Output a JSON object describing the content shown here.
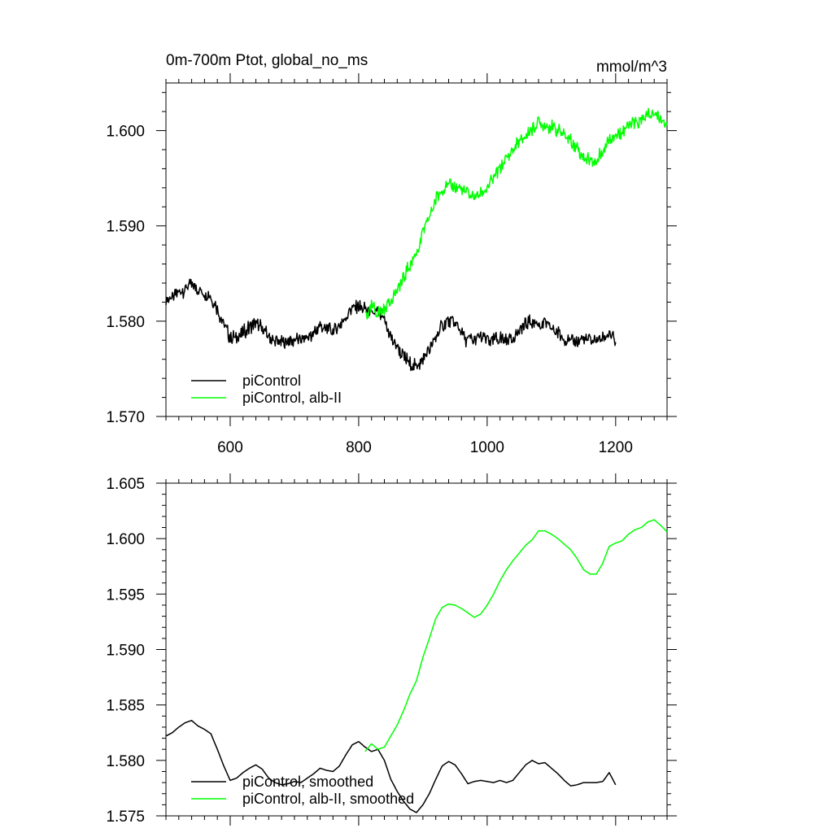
{
  "chart_data": [
    {
      "type": "line",
      "title": "0m-700m Ptot, global_no_ms",
      "units": "mmol/m^3",
      "xlim": [
        500,
        1280
      ],
      "ylim": [
        1.57,
        1.605
      ],
      "x_ticks": [
        600,
        800,
        1000,
        1200
      ],
      "x_tick_labels": [
        "600",
        "800",
        "1000",
        "1200"
      ],
      "y_ticks": [
        1.57,
        1.58,
        1.59,
        1.6
      ],
      "y_tick_labels": [
        "1.570",
        "1.580",
        "1.590",
        "1.600"
      ],
      "grid": false,
      "legend_position": "bottom-left",
      "series": [
        {
          "name": "piControl",
          "color": "#000000",
          "noisy": true,
          "points": [
            [
              500,
              1.5822
            ],
            [
              510,
              1.5825
            ],
            [
              520,
              1.583
            ],
            [
              530,
              1.5834
            ],
            [
              540,
              1.5838
            ],
            [
              550,
              1.5833
            ],
            [
              560,
              1.583
            ],
            [
              570,
              1.5826
            ],
            [
              580,
              1.5812
            ],
            [
              590,
              1.5797
            ],
            [
              600,
              1.5782
            ],
            [
              610,
              1.5783
            ],
            [
              620,
              1.5788
            ],
            [
              630,
              1.5793
            ],
            [
              640,
              1.5798
            ],
            [
              650,
              1.5792
            ],
            [
              660,
              1.5784
            ],
            [
              670,
              1.5779
            ],
            [
              680,
              1.5777
            ],
            [
              690,
              1.5779
            ],
            [
              700,
              1.5781
            ],
            [
              710,
              1.578
            ],
            [
              720,
              1.5784
            ],
            [
              730,
              1.5788
            ],
            [
              740,
              1.5795
            ],
            [
              750,
              1.5792
            ],
            [
              760,
              1.579
            ],
            [
              770,
              1.5795
            ],
            [
              780,
              1.5805
            ],
            [
              790,
              1.5815
            ],
            [
              800,
              1.5817
            ],
            [
              810,
              1.5812
            ],
            [
              820,
              1.5808
            ],
            [
              830,
              1.581
            ],
            [
              840,
              1.58
            ],
            [
              850,
              1.5783
            ],
            [
              860,
              1.5772
            ],
            [
              870,
              1.5763
            ],
            [
              880,
              1.5755
            ],
            [
              890,
              1.5752
            ],
            [
              900,
              1.576
            ],
            [
              910,
              1.577
            ],
            [
              920,
              1.5783
            ],
            [
              930,
              1.5795
            ],
            [
              940,
              1.58
            ],
            [
              950,
              1.5797
            ],
            [
              960,
              1.5788
            ],
            [
              970,
              1.5778
            ],
            [
              980,
              1.5781
            ],
            [
              990,
              1.5783
            ],
            [
              1000,
              1.5781
            ],
            [
              1010,
              1.578
            ],
            [
              1020,
              1.5782
            ],
            [
              1030,
              1.578
            ],
            [
              1040,
              1.5782
            ],
            [
              1050,
              1.5789
            ],
            [
              1060,
              1.5797
            ],
            [
              1070,
              1.58
            ],
            [
              1080,
              1.5797
            ],
            [
              1090,
              1.5798
            ],
            [
              1100,
              1.5793
            ],
            [
              1110,
              1.5788
            ],
            [
              1120,
              1.5783
            ],
            [
              1130,
              1.5778
            ],
            [
              1140,
              1.5778
            ],
            [
              1150,
              1.5781
            ],
            [
              1160,
              1.578
            ],
            [
              1170,
              1.578
            ],
            [
              1180,
              1.5781
            ],
            [
              1190,
              1.5788
            ],
            [
              1200,
              1.5778
            ]
          ]
        },
        {
          "name": "piControl, alb-II",
          "color": "#00ff00",
          "noisy": true,
          "points": [
            [
              810,
              1.5805
            ],
            [
              820,
              1.5815
            ],
            [
              830,
              1.5808
            ],
            [
              840,
              1.5812
            ],
            [
              850,
              1.5822
            ],
            [
              860,
              1.5832
            ],
            [
              870,
              1.5845
            ],
            [
              880,
              1.586
            ],
            [
              890,
              1.5872
            ],
            [
              900,
              1.5893
            ],
            [
              910,
              1.591
            ],
            [
              920,
              1.5928
            ],
            [
              930,
              1.594
            ],
            [
              940,
              1.5942
            ],
            [
              950,
              1.594
            ],
            [
              960,
              1.5938
            ],
            [
              970,
              1.5934
            ],
            [
              980,
              1.593
            ],
            [
              990,
              1.5933
            ],
            [
              1000,
              1.594
            ],
            [
              1010,
              1.595
            ],
            [
              1020,
              1.5962
            ],
            [
              1030,
              1.5972
            ],
            [
              1040,
              1.598
            ],
            [
              1050,
              1.5988
            ],
            [
              1060,
              1.5995
            ],
            [
              1070,
              1.6
            ],
            [
              1080,
              1.6007
            ],
            [
              1090,
              1.6006
            ],
            [
              1100,
              1.6004
            ],
            [
              1110,
              1.6
            ],
            [
              1120,
              1.5995
            ],
            [
              1130,
              1.599
            ],
            [
              1140,
              1.5982
            ],
            [
              1150,
              1.5972
            ],
            [
              1160,
              1.5968
            ],
            [
              1170,
              1.5968
            ],
            [
              1180,
              1.5978
            ],
            [
              1190,
              1.5993
            ],
            [
              1200,
              1.5996
            ],
            [
              1210,
              1.5998
            ],
            [
              1220,
              1.6004
            ],
            [
              1230,
              1.6008
            ],
            [
              1240,
              1.601
            ],
            [
              1250,
              1.6015
            ],
            [
              1260,
              1.6017
            ],
            [
              1270,
              1.6012
            ],
            [
              1280,
              1.6006
            ]
          ]
        }
      ]
    },
    {
      "type": "line",
      "xlim": [
        500,
        1280
      ],
      "ylim": [
        1.575,
        1.605
      ],
      "x_ticks": [
        600,
        800,
        1000,
        1200
      ],
      "y_ticks": [
        1.575,
        1.58,
        1.585,
        1.59,
        1.595,
        1.6,
        1.605
      ],
      "y_tick_labels": [
        "1.575",
        "1.580",
        "1.585",
        "1.590",
        "1.595",
        "1.600",
        "1.605"
      ],
      "grid": false,
      "legend_position": "bottom-left",
      "series": [
        {
          "name": "piControl, smoothed",
          "color": "#000000",
          "noisy": false,
          "points": [
            [
              500,
              1.5822
            ],
            [
              510,
              1.5825
            ],
            [
              520,
              1.583
            ],
            [
              530,
              1.5834
            ],
            [
              540,
              1.5836
            ],
            [
              550,
              1.5831
            ],
            [
              560,
              1.5828
            ],
            [
              570,
              1.5824
            ],
            [
              580,
              1.581
            ],
            [
              590,
              1.5795
            ],
            [
              600,
              1.5782
            ],
            [
              610,
              1.5784
            ],
            [
              620,
              1.5789
            ],
            [
              630,
              1.5793
            ],
            [
              640,
              1.5796
            ],
            [
              650,
              1.5792
            ],
            [
              660,
              1.5784
            ],
            [
              670,
              1.578
            ],
            [
              680,
              1.5778
            ],
            [
              690,
              1.5779
            ],
            [
              700,
              1.5781
            ],
            [
              710,
              1.578
            ],
            [
              720,
              1.5784
            ],
            [
              730,
              1.5788
            ],
            [
              740,
              1.5793
            ],
            [
              750,
              1.5791
            ],
            [
              760,
              1.579
            ],
            [
              770,
              1.5795
            ],
            [
              780,
              1.5805
            ],
            [
              790,
              1.5814
            ],
            [
              800,
              1.5817
            ],
            [
              810,
              1.5812
            ],
            [
              820,
              1.5808
            ],
            [
              830,
              1.581
            ],
            [
              840,
              1.58
            ],
            [
              850,
              1.5783
            ],
            [
              860,
              1.5772
            ],
            [
              870,
              1.5763
            ],
            [
              880,
              1.5756
            ],
            [
              890,
              1.5753
            ],
            [
              900,
              1.576
            ],
            [
              910,
              1.577
            ],
            [
              920,
              1.5783
            ],
            [
              930,
              1.5795
            ],
            [
              940,
              1.5799
            ],
            [
              950,
              1.5796
            ],
            [
              960,
              1.5788
            ],
            [
              970,
              1.5779
            ],
            [
              980,
              1.5781
            ],
            [
              990,
              1.5782
            ],
            [
              1000,
              1.5781
            ],
            [
              1010,
              1.578
            ],
            [
              1020,
              1.5782
            ],
            [
              1030,
              1.578
            ],
            [
              1040,
              1.5782
            ],
            [
              1050,
              1.5789
            ],
            [
              1060,
              1.5796
            ],
            [
              1070,
              1.58
            ],
            [
              1080,
              1.5797
            ],
            [
              1090,
              1.5798
            ],
            [
              1100,
              1.5793
            ],
            [
              1110,
              1.5788
            ],
            [
              1120,
              1.5782
            ],
            [
              1130,
              1.5777
            ],
            [
              1140,
              1.5778
            ],
            [
              1150,
              1.578
            ],
            [
              1160,
              1.578
            ],
            [
              1170,
              1.578
            ],
            [
              1180,
              1.5781
            ],
            [
              1190,
              1.5789
            ],
            [
              1200,
              1.5778
            ]
          ]
        },
        {
          "name": "piControl, alb-II, smoothed",
          "color": "#00ff00",
          "noisy": false,
          "points": [
            [
              810,
              1.5808
            ],
            [
              820,
              1.5815
            ],
            [
              830,
              1.581
            ],
            [
              840,
              1.5812
            ],
            [
              850,
              1.5822
            ],
            [
              860,
              1.5832
            ],
            [
              870,
              1.5845
            ],
            [
              880,
              1.586
            ],
            [
              890,
              1.5872
            ],
            [
              900,
              1.5893
            ],
            [
              910,
              1.591
            ],
            [
              920,
              1.5928
            ],
            [
              930,
              1.5938
            ],
            [
              940,
              1.5941
            ],
            [
              950,
              1.594
            ],
            [
              960,
              1.5937
            ],
            [
              970,
              1.5933
            ],
            [
              980,
              1.5929
            ],
            [
              990,
              1.5932
            ],
            [
              1000,
              1.594
            ],
            [
              1010,
              1.595
            ],
            [
              1020,
              1.5962
            ],
            [
              1030,
              1.5972
            ],
            [
              1040,
              1.598
            ],
            [
              1050,
              1.5987
            ],
            [
              1060,
              1.5994
            ],
            [
              1070,
              1.5999
            ],
            [
              1080,
              1.6007
            ],
            [
              1090,
              1.6007
            ],
            [
              1100,
              1.6004
            ],
            [
              1110,
              1.6
            ],
            [
              1120,
              1.5995
            ],
            [
              1130,
              1.599
            ],
            [
              1140,
              1.5982
            ],
            [
              1150,
              1.5972
            ],
            [
              1160,
              1.5968
            ],
            [
              1170,
              1.5968
            ],
            [
              1180,
              1.5978
            ],
            [
              1190,
              1.5993
            ],
            [
              1200,
              1.5996
            ],
            [
              1210,
              1.5998
            ],
            [
              1220,
              1.6004
            ],
            [
              1230,
              1.6008
            ],
            [
              1240,
              1.601
            ],
            [
              1250,
              1.6015
            ],
            [
              1260,
              1.6017
            ],
            [
              1270,
              1.6012
            ],
            [
              1280,
              1.6006
            ]
          ]
        }
      ]
    }
  ]
}
